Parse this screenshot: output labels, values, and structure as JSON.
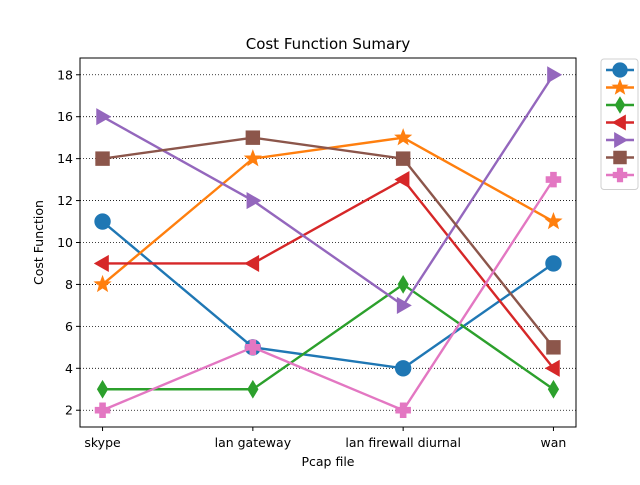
{
  "chart_data": {
    "type": "line",
    "title": "Cost Function Sumary",
    "xlabel": "Pcap file",
    "ylabel": "Cost Function",
    "categories": [
      "skype",
      "lan gateway",
      "lan firewall diurnal",
      "wan"
    ],
    "ylim": [
      1.2,
      18.8
    ],
    "yticks": [
      2,
      4,
      6,
      8,
      10,
      12,
      14,
      16,
      18
    ],
    "grid": "horizontal dotted",
    "legend": "outside-top-right",
    "series": [
      {
        "values": [
          11,
          5,
          4,
          9
        ],
        "color": "#1f77b4",
        "marker": "circle"
      },
      {
        "values": [
          8,
          14,
          15,
          11
        ],
        "color": "#ff7f0e",
        "marker": "star"
      },
      {
        "values": [
          3,
          3,
          8,
          3
        ],
        "color": "#2ca02c",
        "marker": "thin-diamond"
      },
      {
        "values": [
          9,
          9,
          13,
          4
        ],
        "color": "#d62728",
        "marker": "triangle-left"
      },
      {
        "values": [
          16,
          12,
          7,
          18
        ],
        "color": "#9467bd",
        "marker": "triangle-right"
      },
      {
        "values": [
          14,
          15,
          14,
          5
        ],
        "color": "#8c564b",
        "marker": "square"
      },
      {
        "values": [
          2,
          5,
          2,
          13
        ],
        "color": "#e377c2",
        "marker": "plus-filled"
      }
    ]
  }
}
